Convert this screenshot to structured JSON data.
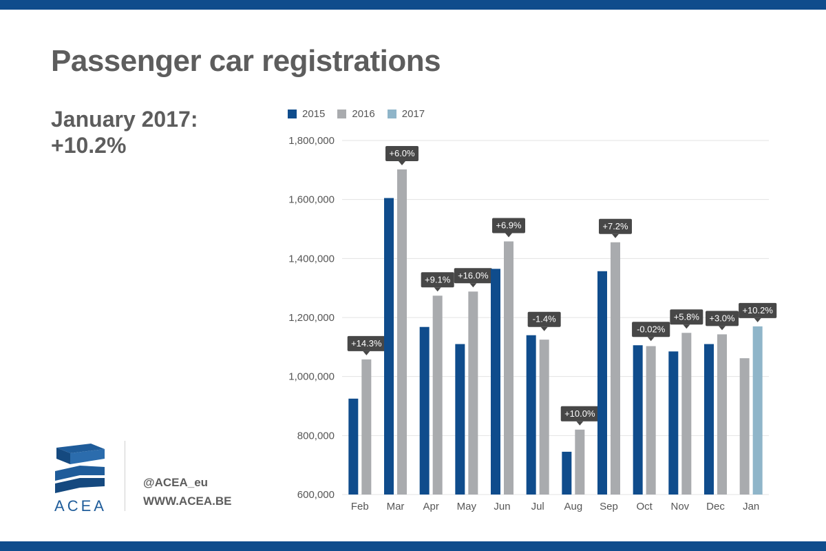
{
  "header": {
    "title": "Passenger car registrations"
  },
  "highlight": {
    "line1": "January 2017:",
    "line2": "+10.2%"
  },
  "brand": {
    "logo_text": "ACEA",
    "handle": "@ACEA_eu",
    "website": "WWW.ACEA.BE"
  },
  "colors": {
    "band": "#0f4c8c",
    "s2015": "#0f4c8c",
    "s2016": "#a9abae",
    "s2017": "#8fb5c9",
    "label_bg": "#474747",
    "grid": "#e3e3e3",
    "text": "#5d5d5d"
  },
  "chart_data": {
    "type": "bar",
    "title": "",
    "xlabel": "",
    "ylabel": "",
    "ylim": [
      600000,
      1800000
    ],
    "yticks": [
      "600,000",
      "800,000",
      "1,000,000",
      "1,200,000",
      "1,400,000",
      "1,600,000",
      "1,800,000"
    ],
    "grid": true,
    "legend_position": "top-left",
    "categories": [
      "Feb",
      "Mar",
      "Apr",
      "May",
      "Jun",
      "Jul",
      "Aug",
      "Sep",
      "Oct",
      "Nov",
      "Dec",
      "Jan"
    ],
    "series": [
      {
        "name": "2015",
        "values": [
          925000,
          1605000,
          1168000,
          1110000,
          1365000,
          1140000,
          745000,
          1357000,
          1106000,
          1085000,
          1110000,
          null
        ]
      },
      {
        "name": "2016",
        "values": [
          1058000,
          1702000,
          1274000,
          1288000,
          1458000,
          1125000,
          820000,
          1455000,
          1103000,
          1148000,
          1143000,
          1062000
        ]
      },
      {
        "name": "2017",
        "values": [
          null,
          null,
          null,
          null,
          null,
          null,
          null,
          null,
          null,
          null,
          null,
          1170000
        ]
      }
    ],
    "change_labels": [
      "+14.3%",
      "+6.0%",
      "+9.1%",
      "+16.0%",
      "+6.9%",
      "-1.4%",
      "+10.0%",
      "+7.2%",
      "-0.02%",
      "+5.8%",
      "+3.0%",
      "+10.2%"
    ]
  }
}
